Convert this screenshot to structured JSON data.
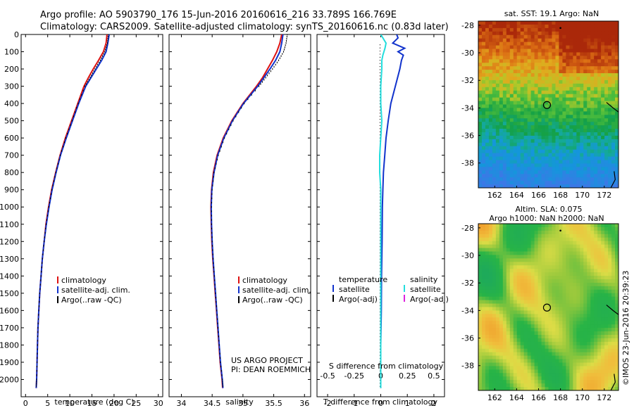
{
  "header": {
    "line1": "Argo profile: AO 5903790_176 15-Jun-2016 20160616_216 33.789S 166.769E",
    "line2": "Climatology: CARS2009. Satellite-adjusted climatology: synTS_20160616.nc (0.83d later)"
  },
  "colors": {
    "climatology": "#dd1111",
    "satellite_clim": "#1133cc",
    "argo": "#000000",
    "salinity_satellite": "#22dddd",
    "salinity_argo": "#dd22dd",
    "marker": "#000000"
  },
  "chart_data": [
    {
      "id": "temperature",
      "type": "line",
      "xlabel": "temperature (deg C)",
      "ylabel": "",
      "xlim": [
        -1,
        31
      ],
      "ylim": [
        2100,
        0
      ],
      "xticks": [
        0,
        5,
        10,
        15,
        20,
        25,
        30
      ],
      "xtick_labels": [
        "0",
        "5",
        "10",
        "15",
        "20",
        "25",
        "30"
      ],
      "yticks": [
        0,
        100,
        200,
        300,
        400,
        500,
        600,
        700,
        800,
        900,
        1000,
        1100,
        1200,
        1300,
        1400,
        1500,
        1600,
        1700,
        1800,
        1900,
        2000
      ],
      "ytick_labels": [
        "0",
        "100",
        "200",
        "300",
        "400",
        "500",
        "600",
        "700",
        "800",
        "900",
        "1000",
        "1100",
        "1200",
        "1300",
        "1400",
        "1500",
        "1600",
        "1700",
        "1800",
        "1900",
        "2000"
      ],
      "depth": [
        0,
        50,
        100,
        150,
        200,
        250,
        300,
        400,
        500,
        600,
        700,
        800,
        900,
        1000,
        1100,
        1200,
        1300,
        1400,
        1500,
        1600,
        1700,
        1800,
        1900,
        2000,
        2050
      ],
      "series": [
        {
          "name": "climatology",
          "values": [
            18.4,
            18.2,
            17.6,
            16.5,
            15.3,
            14.2,
            13.2,
            11.8,
            10.4,
            9.0,
            7.8,
            6.8,
            5.9,
            5.2,
            4.6,
            4.2,
            3.8,
            3.5,
            3.2,
            3.0,
            2.8,
            2.7,
            2.6,
            2.5,
            2.4
          ]
        },
        {
          "name": "satellite-adj. clim.",
          "values": [
            18.9,
            18.6,
            18.2,
            17.2,
            16.0,
            14.8,
            13.6,
            12.0,
            10.6,
            9.2,
            7.9,
            6.9,
            6.0,
            5.3,
            4.7,
            4.2,
            3.8,
            3.5,
            3.2,
            3.0,
            2.8,
            2.7,
            2.6,
            2.5,
            2.4
          ]
        },
        {
          "name": "Argo(..raw -QC)",
          "values": [
            18.7,
            18.5,
            17.9,
            16.9,
            15.7,
            14.6,
            13.4,
            11.9,
            10.5,
            9.1,
            7.85,
            6.85,
            5.95,
            5.25,
            4.65,
            4.2,
            3.8,
            3.5,
            3.2,
            3.0,
            2.8,
            2.7,
            2.6,
            2.5,
            2.4
          ]
        }
      ],
      "legend": [
        "climatology",
        "satellite-adj. clim.",
        "Argo(..raw -QC)"
      ]
    },
    {
      "id": "salinity",
      "type": "line",
      "xlabel": "salinity",
      "ylabel": "",
      "xlim": [
        33.8,
        36.1
      ],
      "ylim": [
        2100,
        0
      ],
      "xticks": [
        34,
        34.5,
        35,
        35.5,
        36
      ],
      "xtick_labels": [
        "34",
        "34.5",
        "35",
        "35.5",
        "36"
      ],
      "depth": [
        0,
        50,
        100,
        150,
        200,
        250,
        300,
        400,
        500,
        600,
        700,
        800,
        900,
        1000,
        1100,
        1200,
        1300,
        1400,
        1500,
        1600,
        1700,
        1800,
        1900,
        2000,
        2050
      ],
      "series": [
        {
          "name": "climatology",
          "values": [
            35.63,
            35.6,
            35.55,
            35.48,
            35.4,
            35.32,
            35.22,
            35.0,
            34.82,
            34.68,
            34.58,
            34.52,
            34.49,
            34.48,
            34.485,
            34.495,
            34.51,
            34.53,
            34.55,
            34.57,
            34.59,
            34.61,
            34.63,
            34.66,
            34.67
          ]
        },
        {
          "name": "satellite-adj. clim.",
          "values": [
            35.65,
            35.63,
            35.6,
            35.53,
            35.44,
            35.34,
            35.24,
            35.01,
            34.83,
            34.69,
            34.59,
            34.53,
            34.495,
            34.485,
            34.49,
            34.5,
            34.515,
            34.535,
            34.555,
            34.575,
            34.595,
            34.615,
            34.635,
            34.665,
            34.675
          ]
        },
        {
          "name": "Argo(..raw -QC)",
          "values": [
            35.72,
            35.7,
            35.66,
            35.58,
            35.48,
            35.37,
            35.26,
            35.02,
            34.84,
            34.7,
            34.6,
            34.53,
            34.5,
            34.49,
            34.49,
            34.5,
            34.515,
            34.535,
            34.555,
            34.575,
            34.595,
            34.615,
            34.635,
            34.665,
            34.675
          ]
        }
      ],
      "legend": [
        "climatology",
        "satellite-adj. clim.",
        "Argo(..raw -QC)"
      ],
      "annotation": [
        "US ARGO PROJECT",
        "PI: DEAN ROEMMICH"
      ]
    },
    {
      "id": "difference",
      "type": "line",
      "xlabel": "T difference from climatology",
      "xlabel_top": "S difference from climatology",
      "xlim": [
        -2.4,
        2.4
      ],
      "ylim": [
        2100,
        0
      ],
      "xticks": [
        -2,
        -1,
        0,
        1,
        2
      ],
      "xtick_labels": [
        "-2",
        "-1",
        "0",
        "1",
        "2"
      ],
      "sticks": [
        -0.5,
        -0.25,
        0,
        0.25,
        0.5
      ],
      "stick_labels": [
        "-0.5",
        "-0.25",
        "0",
        "0.25",
        "0.5"
      ],
      "depth": [
        0,
        20,
        50,
        80,
        100,
        120,
        150,
        200,
        300,
        400,
        500,
        600,
        700,
        800,
        900,
        1000,
        1200,
        1400,
        1600,
        1800,
        2000,
        2050
      ],
      "series": [
        {
          "name": "temperature satellite",
          "values": [
            0.6,
            0.65,
            0.45,
            0.9,
            0.65,
            0.85,
            0.78,
            0.72,
            0.55,
            0.38,
            0.28,
            0.2,
            0.15,
            0.1,
            0.08,
            0.06,
            0.05,
            0.03,
            0.02,
            0.0,
            0.0,
            0.0
          ]
        },
        {
          "name": "salinity satellite",
          "values": [
            0.0,
            0.02,
            0.05,
            0.04,
            0.03,
            0.02,
            0.01,
            0.01,
            0.0,
            0.0,
            0.01,
            0.0,
            -0.01,
            -0.01,
            0.0,
            0.0,
            0.0,
            0.0,
            0.0,
            0.0,
            0.0,
            0.0
          ]
        }
      ],
      "legend_groups": [
        {
          "title": "temperature",
          "items": [
            "satellite",
            "Argo(-adj)"
          ]
        },
        {
          "title": "salinity",
          "items": [
            "satellite",
            "Argo(-adj)"
          ]
        }
      ]
    },
    {
      "id": "sst_map",
      "type": "heatmap",
      "title": "sat. SST: 19.1  Argo: NaN",
      "xlim": [
        160.5,
        173.3
      ],
      "ylim": [
        -39.8,
        -27.7
      ],
      "xticks": [
        162,
        164,
        166,
        168,
        170,
        172
      ],
      "yticks": [
        -28,
        -30,
        -32,
        -34,
        -36,
        -38
      ],
      "float_position": [
        166.769,
        -33.789
      ]
    },
    {
      "id": "sla_map",
      "type": "heatmap",
      "title": "Altim. SLA: 0.075",
      "subtitle": "Argo h1000: NaN h2000: NaN",
      "xlim": [
        160.5,
        173.3
      ],
      "ylim": [
        -39.8,
        -27.7
      ],
      "xticks": [
        162,
        164,
        166,
        168,
        170,
        172
      ],
      "yticks": [
        -28,
        -30,
        -32,
        -34,
        -36,
        -38
      ],
      "float_position": [
        166.769,
        -33.789
      ]
    }
  ],
  "footer": {
    "credit": "©IMOS 23-Jun-2016 20:39:23"
  }
}
